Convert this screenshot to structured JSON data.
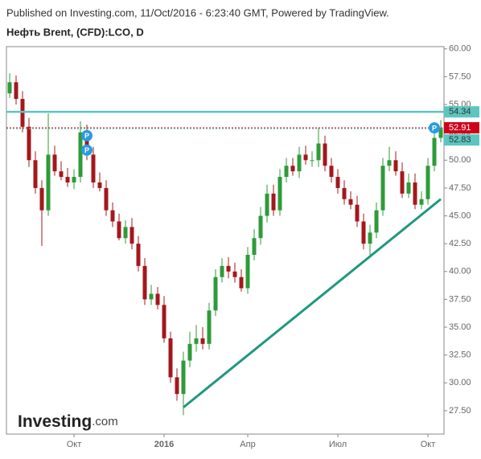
{
  "header": {
    "published": "Published on Investing.com, 11/Oct/2016 - 6:23:40 GMT, Powered by TradingView.",
    "instrument": "Нефть Brent, (CFD):LCO, D"
  },
  "logo": {
    "name": "Investing",
    "suffix": ".com"
  },
  "chart_data": {
    "type": "candlestick",
    "categories": [
      null,
      null,
      null,
      null,
      null,
      null,
      null,
      null,
      null,
      null,
      "Окт",
      null,
      null,
      null,
      null,
      null,
      null,
      null,
      null,
      null,
      null,
      null,
      null,
      null,
      "2016",
      null,
      null,
      null,
      null,
      null,
      null,
      null,
      null,
      null,
      null,
      null,
      null,
      "Апр",
      null,
      null,
      null,
      null,
      null,
      null,
      null,
      null,
      null,
      null,
      null,
      null,
      null,
      "Июл",
      null,
      null,
      null,
      null,
      null,
      null,
      null,
      null,
      null,
      null,
      null,
      null,
      null,
      "Окт",
      null,
      null
    ],
    "open": [
      56.0,
      57.0,
      55.5,
      53.0,
      50.0,
      47.5,
      45.5,
      50.5,
      49.0,
      48.5,
      48.0,
      48.5,
      52.5,
      50.5,
      48.0,
      47.5,
      45.5,
      44.5,
      43.0,
      44.0,
      42.5,
      40.5,
      37.5,
      38.0,
      37.0,
      34.0,
      30.5,
      29.0,
      32.0,
      33.5,
      34.0,
      33.5,
      36.5,
      39.5,
      40.5,
      40.0,
      39.5,
      38.5,
      41.5,
      43.0,
      45.0,
      47.0,
      45.5,
      48.5,
      49.5,
      49.0,
      50.5,
      50.0,
      50.0,
      51.5,
      49.5,
      48.5,
      47.5,
      46.5,
      46.0,
      44.5,
      42.5,
      43.5,
      45.5,
      49.5,
      50.0,
      49.0,
      47.0,
      48.0,
      46.0,
      46.5,
      49.5,
      52.0
    ],
    "high": [
      57.8,
      57.6,
      56.2,
      53.8,
      50.8,
      48.2,
      54.2,
      51.3,
      49.9,
      49.3,
      49.2,
      53.5,
      53.2,
      51.2,
      48.9,
      48.2,
      46.2,
      45.2,
      44.6,
      44.8,
      43.2,
      41.2,
      38.8,
      38.6,
      37.8,
      34.6,
      31.3,
      32.8,
      34.6,
      35.2,
      35.0,
      37.2,
      40.2,
      41.2,
      41.3,
      40.8,
      40.2,
      42.2,
      43.8,
      45.8,
      47.8,
      47.8,
      49.2,
      50.2,
      50.2,
      51.2,
      51.3,
      50.8,
      52.9,
      52.2,
      50.2,
      49.2,
      48.2,
      47.2,
      46.8,
      45.2,
      44.2,
      46.2,
      50.2,
      51.2,
      50.8,
      49.8,
      48.8,
      48.8,
      47.2,
      50.2,
      52.8,
      53.6
    ],
    "low": [
      55.6,
      55.0,
      52.5,
      49.4,
      47.0,
      42.3,
      45.0,
      48.6,
      48.2,
      47.6,
      47.4,
      48.0,
      50.0,
      47.5,
      47.2,
      45.0,
      44.0,
      42.8,
      42.5,
      42.0,
      40.0,
      37.0,
      37.0,
      36.6,
      33.6,
      30.0,
      28.4,
      27.1,
      31.4,
      32.8,
      33.0,
      33.0,
      36.0,
      39.0,
      39.4,
      39.0,
      38.2,
      38.0,
      41.0,
      42.4,
      44.4,
      45.0,
      45.0,
      48.0,
      48.6,
      48.4,
      49.6,
      49.4,
      49.4,
      49.0,
      48.0,
      47.0,
      46.0,
      45.6,
      44.0,
      42.0,
      41.5,
      43.0,
      45.0,
      49.0,
      48.6,
      46.6,
      46.6,
      45.6,
      45.6,
      46.0,
      49.0,
      51.6
    ],
    "close": [
      57.0,
      55.5,
      53.0,
      50.0,
      47.5,
      45.5,
      50.5,
      49.0,
      48.5,
      48.0,
      48.5,
      52.5,
      50.5,
      48.0,
      47.5,
      45.5,
      44.5,
      43.0,
      44.0,
      42.5,
      40.5,
      37.5,
      38.0,
      37.0,
      34.0,
      30.5,
      29.0,
      32.0,
      33.5,
      34.0,
      33.5,
      36.5,
      39.5,
      40.5,
      40.0,
      39.5,
      38.5,
      41.5,
      43.0,
      45.0,
      47.0,
      45.5,
      48.5,
      49.5,
      49.0,
      50.5,
      50.0,
      50.0,
      51.5,
      49.5,
      48.5,
      47.5,
      46.5,
      46.0,
      44.5,
      42.5,
      43.5,
      45.5,
      49.5,
      50.0,
      49.0,
      47.0,
      48.0,
      46.0,
      46.5,
      49.5,
      52.0,
      52.9
    ],
    "up_color": "#2e9b3a",
    "down_color": "#a3181d",
    "ylim": [
      25.4,
      60.2
    ],
    "yticks": [
      {
        "value": 27.5,
        "label": "27.50"
      },
      {
        "value": 30,
        "label": "30.00"
      },
      {
        "value": 32.5,
        "label": "32.50"
      },
      {
        "value": 35,
        "label": "35.00"
      },
      {
        "value": 37.5,
        "label": "37.50"
      },
      {
        "value": 40,
        "label": "40.00"
      },
      {
        "value": 42.5,
        "label": "42.50"
      },
      {
        "value": 45,
        "label": "45.00"
      },
      {
        "value": 47.5,
        "label": "47.50"
      },
      {
        "value": 50,
        "label": "50.00"
      },
      {
        "value": 52.5,
        "label": "52.50"
      },
      {
        "value": 55,
        "label": "55.00"
      },
      {
        "value": 57.5,
        "label": "57.50"
      },
      {
        "value": 60,
        "label": "60.00"
      }
    ],
    "price_lines": [
      {
        "value": 54.34,
        "color": "#5cc5c0"
      },
      {
        "value": 52.91,
        "color": "#d0021b"
      },
      {
        "value": 52.83,
        "color": "#5cc5c0"
      }
    ],
    "trendline": {
      "x": [
        27,
        67
      ],
      "values": [
        27.8,
        46.5
      ],
      "color": "#20977f"
    },
    "markers": [
      {
        "label": "P",
        "x": 12,
        "value": 52.2
      },
      {
        "label": "P",
        "x": 12,
        "value": 50.9
      },
      {
        "label": "P",
        "x": 66,
        "value": 52.9
      }
    ]
  }
}
